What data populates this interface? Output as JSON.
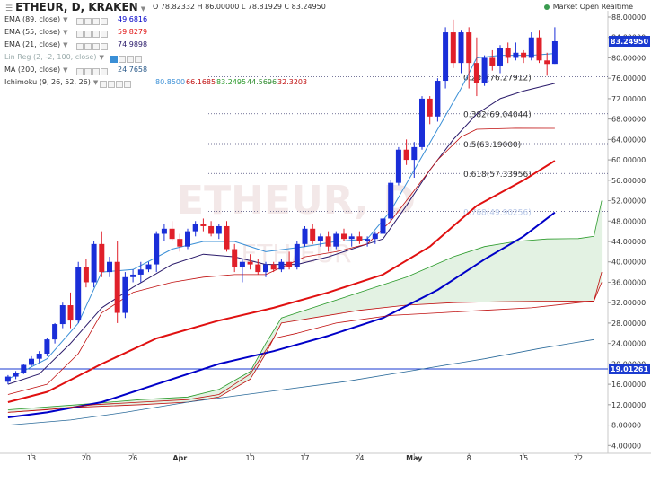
{
  "header": {
    "title": "ETHEUR, D, KRAKEN",
    "ohlc": "O 78.82332 H 86.00000 L 78.81929 C 83.24950",
    "status": "Market Open Realtime",
    "status_color": "#3a9b4f"
  },
  "watermark": {
    "pair": "ETHEUR, D",
    "name": "ETH/EUR"
  },
  "indicators": [
    {
      "name": "EMA (89, close)",
      "value": "49.6816",
      "color": "#0000c8"
    },
    {
      "name": "EMA (55, close)",
      "value": "59.8279",
      "color": "#e01010"
    },
    {
      "name": "EMA (21, close)",
      "value": "74.9898",
      "color": "#2a1a6a"
    },
    {
      "name": "Lin Reg (2, -2, 100, close)",
      "value": "",
      "color": "#3b8bb5"
    },
    {
      "name": "MA (200, close)",
      "value": "24.7658",
      "color": "#2a5a8a"
    },
    {
      "name": "Ichimoku (9, 26, 52, 26)",
      "values": [
        "80.8500",
        "66.1685",
        "83.2495",
        "44.5696",
        "32.3203"
      ],
      "colors": [
        "#3a8fd6",
        "#c01010",
        "#2a9a2a",
        "#2a8a2a",
        "#c01010"
      ]
    }
  ],
  "chart_data": {
    "type": "candlestick",
    "title": "ETHEUR, D, KRAKEN",
    "xlabel": "",
    "ylabel": "",
    "ylim": [
      4,
      90
    ],
    "y_ticks": [
      "88.00000",
      "84.00000",
      "80.00000",
      "76.00000",
      "72.00000",
      "68.00000",
      "64.00000",
      "60.00000",
      "56.00000",
      "52.00000",
      "48.00000",
      "44.00000",
      "40.00000",
      "36.00000",
      "32.00000",
      "28.00000",
      "24.00000",
      "20.00000",
      "16.00000",
      "12.00000",
      "8.00000",
      "4.00000"
    ],
    "x_ticks": [
      {
        "label": "13",
        "day": 0
      },
      {
        "label": "20",
        "day": 7
      },
      {
        "label": "26",
        "day": 13
      },
      {
        "label": "Apr",
        "day": 19
      },
      {
        "label": "10",
        "day": 28
      },
      {
        "label": "17",
        "day": 35
      },
      {
        "label": "24",
        "day": 42
      },
      {
        "label": "May",
        "day": 49
      },
      {
        "label": "8",
        "day": 56
      },
      {
        "label": "15",
        "day": 63
      },
      {
        "label": "22",
        "day": 70
      }
    ],
    "price_labels": [
      {
        "text": "83.24950",
        "value": 83.2495,
        "color": "#1a3ad0"
      },
      {
        "text": "19.01261",
        "value": 19.01261,
        "color": "#1a3ad0"
      }
    ],
    "fib_levels": [
      {
        "label": "0.236(76.27912)",
        "value": 76.27912
      },
      {
        "label": "0.382(69.04044)",
        "value": 69.04044
      },
      {
        "label": "0.5(63.19000)",
        "value": 63.19
      },
      {
        "label": "0.618(57.33956)",
        "value": 57.33956
      },
      {
        "label": "0.768(49.90256)",
        "value": 49.90256
      }
    ],
    "candles": [
      [
        -3,
        16.5,
        17.8,
        16.0,
        17.5
      ],
      [
        -2,
        17.5,
        18.6,
        17.0,
        18.3
      ],
      [
        -1,
        18.3,
        20.0,
        18.0,
        19.8
      ],
      [
        0,
        19.8,
        21.5,
        19.5,
        21.0
      ],
      [
        1,
        21.0,
        22.5,
        20.2,
        22.0
      ],
      [
        2,
        22.0,
        25.0,
        21.5,
        24.8
      ],
      [
        3,
        24.8,
        28.0,
        24.0,
        27.8
      ],
      [
        4,
        27.8,
        32.0,
        27.0,
        31.5
      ],
      [
        5,
        31.5,
        34.0,
        27.0,
        28.5
      ],
      [
        6,
        28.5,
        40.0,
        28.0,
        39.0
      ],
      [
        7,
        39.0,
        40.5,
        35.0,
        36.0
      ],
      [
        8,
        36.0,
        44.0,
        35.0,
        43.5
      ],
      [
        9,
        43.5,
        46.0,
        37.0,
        38.0
      ],
      [
        10,
        38.0,
        41.0,
        37.0,
        40.0
      ],
      [
        11,
        40.0,
        44.0,
        28.0,
        30.0
      ],
      [
        12,
        30.0,
        38.0,
        29.0,
        37.0
      ],
      [
        13,
        37.0,
        38.5,
        36.0,
        37.5
      ],
      [
        14,
        37.5,
        40.0,
        36.0,
        38.5
      ],
      [
        15,
        38.5,
        40.0,
        38.0,
        39.5
      ],
      [
        16,
        39.5,
        46.0,
        38.0,
        45.5
      ],
      [
        17,
        45.5,
        47.5,
        44.0,
        46.5
      ],
      [
        18,
        46.5,
        48.0,
        44.0,
        44.5
      ],
      [
        19,
        44.5,
        45.5,
        42.0,
        43.0
      ],
      [
        20,
        43.0,
        46.5,
        42.5,
        46.0
      ],
      [
        21,
        46.0,
        48.0,
        45.0,
        47.5
      ],
      [
        22,
        47.5,
        48.5,
        46.0,
        47.0
      ],
      [
        23,
        47.0,
        48.0,
        45.0,
        45.5
      ],
      [
        24,
        45.5,
        47.5,
        44.5,
        47.0
      ],
      [
        25,
        47.0,
        48.0,
        42.0,
        42.5
      ],
      [
        26,
        42.5,
        43.5,
        38.0,
        39.0
      ],
      [
        27,
        39.0,
        40.5,
        36.0,
        40.0
      ],
      [
        28,
        40.0,
        41.5,
        38.5,
        39.5
      ],
      [
        29,
        39.5,
        40.5,
        37.5,
        38.0
      ],
      [
        30,
        38.0,
        40.0,
        37.0,
        39.5
      ],
      [
        31,
        39.5,
        40.0,
        38.0,
        38.5
      ],
      [
        32,
        38.5,
        40.5,
        38.0,
        40.0
      ],
      [
        33,
        40.0,
        42.0,
        38.5,
        39.0
      ],
      [
        34,
        39.0,
        44.0,
        38.5,
        43.5
      ],
      [
        35,
        43.5,
        47.0,
        43.0,
        46.5
      ],
      [
        36,
        46.5,
        47.5,
        43.5,
        44.0
      ],
      [
        37,
        44.0,
        45.5,
        43.0,
        45.0
      ],
      [
        38,
        45.0,
        46.0,
        42.0,
        43.0
      ],
      [
        39,
        43.0,
        46.0,
        42.5,
        45.5
      ],
      [
        40,
        45.5,
        46.5,
        44.0,
        44.5
      ],
      [
        41,
        44.5,
        45.5,
        43.0,
        45.0
      ],
      [
        42,
        45.0,
        46.0,
        43.5,
        44.0
      ],
      [
        43,
        44.0,
        45.0,
        43.0,
        44.5
      ],
      [
        44,
        44.5,
        46.0,
        43.5,
        45.5
      ],
      [
        45,
        45.5,
        49.0,
        45.0,
        48.5
      ],
      [
        46,
        48.5,
        56.0,
        48.0,
        55.5
      ],
      [
        47,
        55.5,
        62.5,
        55.0,
        62.0
      ],
      [
        48,
        62.0,
        64.0,
        59.0,
        60.0
      ],
      [
        49,
        60.0,
        63.5,
        56.5,
        62.5
      ],
      [
        50,
        62.5,
        72.5,
        62.0,
        72.0
      ],
      [
        51,
        72.0,
        72.5,
        67.0,
        68.5
      ],
      [
        52,
        68.5,
        76.0,
        67.5,
        75.5
      ],
      [
        53,
        75.5,
        86.0,
        74.0,
        85.0
      ],
      [
        54,
        85.0,
        87.5,
        78.0,
        79.0
      ],
      [
        55,
        79.0,
        85.5,
        77.0,
        85.0
      ],
      [
        56,
        85.0,
        86.0,
        74.0,
        79.0
      ],
      [
        57,
        79.0,
        84.0,
        72.5,
        75.0
      ],
      [
        58,
        75.0,
        80.5,
        74.5,
        80.0
      ],
      [
        59,
        80.0,
        81.5,
        77.5,
        78.5
      ],
      [
        60,
        78.5,
        82.5,
        77.0,
        82.0
      ],
      [
        61,
        82.0,
        83.0,
        79.0,
        80.0
      ],
      [
        62,
        80.0,
        83.0,
        79.5,
        81.0
      ],
      [
        63,
        81.0,
        81.5,
        79.0,
        80.0
      ],
      [
        64,
        80.0,
        85.0,
        79.5,
        84.0
      ],
      [
        65,
        84.0,
        85.5,
        79.0,
        79.5
      ],
      [
        66,
        79.5,
        81.0,
        76.5,
        78.8
      ],
      [
        67,
        78.82332,
        86.0,
        78.81929,
        83.2495
      ]
    ],
    "series": [
      {
        "name": "EMA (89, close)",
        "color": "#0000c8",
        "width": 2,
        "points": [
          [
            -3,
            9.5
          ],
          [
            2,
            10.5
          ],
          [
            9,
            12.5
          ],
          [
            16,
            16.0
          ],
          [
            24,
            20.0
          ],
          [
            31,
            22.5
          ],
          [
            38,
            25.5
          ],
          [
            45,
            29.0
          ],
          [
            52,
            34.5
          ],
          [
            58,
            40.5
          ],
          [
            63,
            45.0
          ],
          [
            67,
            49.68
          ]
        ]
      },
      {
        "name": "EMA (55, close)",
        "color": "#e01010",
        "width": 2,
        "points": [
          [
            -3,
            12.5
          ],
          [
            2,
            14.5
          ],
          [
            9,
            20.0
          ],
          [
            16,
            25.0
          ],
          [
            24,
            28.5
          ],
          [
            31,
            31.0
          ],
          [
            38,
            34.0
          ],
          [
            45,
            37.5
          ],
          [
            51,
            43.0
          ],
          [
            57,
            51.0
          ],
          [
            63,
            56.0
          ],
          [
            67,
            59.83
          ]
        ]
      },
      {
        "name": "EMA (21, close)",
        "color": "#2a1a6a",
        "width": 1,
        "points": [
          [
            -3,
            16.0
          ],
          [
            1,
            18.0
          ],
          [
            5,
            24.0
          ],
          [
            9,
            31.0
          ],
          [
            13,
            35.0
          ],
          [
            18,
            39.5
          ],
          [
            22,
            41.5
          ],
          [
            26,
            41.0
          ],
          [
            30,
            39.5
          ],
          [
            34,
            39.5
          ],
          [
            38,
            41.0
          ],
          [
            42,
            43.0
          ],
          [
            45,
            44.5
          ],
          [
            48,
            51.0
          ],
          [
            51,
            58.0
          ],
          [
            54,
            64.0
          ],
          [
            57,
            69.0
          ],
          [
            60,
            72.0
          ],
          [
            63,
            73.5
          ],
          [
            67,
            74.99
          ]
        ]
      },
      {
        "name": "Ichimoku tenkan",
        "color": "#3a8fd6",
        "width": 1,
        "points": [
          [
            -3,
            17.0
          ],
          [
            2,
            21.0
          ],
          [
            6,
            28.0
          ],
          [
            9,
            38.0
          ],
          [
            13,
            38.5
          ],
          [
            18,
            42.5
          ],
          [
            22,
            44.0
          ],
          [
            26,
            44.0
          ],
          [
            30,
            42.0
          ],
          [
            35,
            43.0
          ],
          [
            39,
            44.0
          ],
          [
            43,
            44.5
          ],
          [
            46,
            50.0
          ],
          [
            49,
            58.0
          ],
          [
            52,
            66.0
          ],
          [
            55,
            74.0
          ],
          [
            57,
            80.0
          ],
          [
            60,
            80.5
          ],
          [
            64,
            80.5
          ],
          [
            67,
            80.85
          ]
        ]
      },
      {
        "name": "Ichimoku kijun",
        "color": "#c01010",
        "width": 0.8,
        "points": [
          [
            -3,
            14.0
          ],
          [
            2,
            16.0
          ],
          [
            6,
            22.0
          ],
          [
            9,
            30.0
          ],
          [
            13,
            34.0
          ],
          [
            18,
            36.0
          ],
          [
            22,
            37.0
          ],
          [
            26,
            37.5
          ],
          [
            30,
            37.5
          ],
          [
            35,
            41.0
          ],
          [
            39,
            42.0
          ],
          [
            43,
            43.5
          ],
          [
            46,
            48.0
          ],
          [
            49,
            54.0
          ],
          [
            52,
            60.0
          ],
          [
            55,
            64.5
          ],
          [
            57,
            66.0
          ],
          [
            62,
            66.2
          ],
          [
            67,
            66.17
          ]
        ]
      },
      {
        "name": "Ichimoku chikou",
        "color": "#c01010",
        "width": 0.8,
        "points": [
          [
            -3,
            10.5
          ],
          [
            2,
            11.0
          ],
          [
            8,
            12.0
          ],
          [
            14,
            12.5
          ],
          [
            20,
            13.0
          ],
          [
            24,
            14.0
          ],
          [
            28,
            18.0
          ],
          [
            31,
            25.0
          ],
          [
            34,
            26.0
          ],
          [
            39,
            28.0
          ],
          [
            46,
            29.5
          ],
          [
            52,
            30.0
          ],
          [
            58,
            30.5
          ],
          [
            64,
            31.0
          ],
          [
            70,
            32.0
          ],
          [
            72,
            32.3
          ],
          [
            73,
            38.0
          ]
        ]
      },
      {
        "name": "MA (200, close)",
        "color": "#2a6a9a",
        "width": 0.8,
        "points": [
          [
            -3,
            8.0
          ],
          [
            5,
            9.0
          ],
          [
            12,
            10.5
          ],
          [
            20,
            12.5
          ],
          [
            30,
            14.5
          ],
          [
            40,
            16.5
          ],
          [
            50,
            19.0
          ],
          [
            58,
            21.0
          ],
          [
            65,
            23.0
          ],
          [
            72,
            24.77
          ]
        ]
      }
    ],
    "cloud": {
      "upper": [
        [
          -3,
          11.0
        ],
        [
          6,
          12.0
        ],
        [
          14,
          13.0
        ],
        [
          20,
          13.5
        ],
        [
          24,
          15.0
        ],
        [
          28,
          18.5
        ],
        [
          30,
          24.0
        ],
        [
          32,
          29.0
        ],
        [
          36,
          31.0
        ],
        [
          42,
          34.0
        ],
        [
          48,
          37.0
        ],
        [
          54,
          41.0
        ],
        [
          58,
          43.0
        ],
        [
          62,
          44.0
        ],
        [
          66,
          44.5
        ],
        [
          70,
          44.57
        ],
        [
          72,
          45.0
        ],
        [
          73,
          52.0
        ]
      ],
      "lower": [
        [
          -3,
          10.5
        ],
        [
          6,
          11.5
        ],
        [
          14,
          12.0
        ],
        [
          20,
          12.5
        ],
        [
          24,
          13.5
        ],
        [
          28,
          17.0
        ],
        [
          30,
          22.0
        ],
        [
          32,
          28.0
        ],
        [
          36,
          29.0
        ],
        [
          42,
          30.5
        ],
        [
          48,
          31.5
        ],
        [
          54,
          32.0
        ],
        [
          60,
          32.2
        ],
        [
          66,
          32.3
        ],
        [
          72,
          32.32
        ],
        [
          73,
          36.0
        ]
      ],
      "color": "#2a9a2a"
    }
  }
}
